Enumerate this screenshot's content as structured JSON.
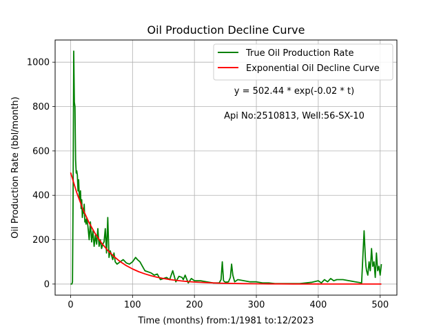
{
  "chart_data": {
    "type": "line",
    "title": "Oil Production Decline Curve",
    "xlabel": "Time (months) from:1/1981 to:12/2023",
    "ylabel": "Oil Production Rate (bbl/month)",
    "xlim": [
      -25,
      527
    ],
    "ylim": [
      -50,
      1100
    ],
    "xticks": [
      0,
      100,
      200,
      300,
      400,
      500
    ],
    "yticks": [
      0,
      200,
      400,
      600,
      800,
      1000
    ],
    "grid": true,
    "legend_position": "top-right",
    "annotations": [
      "y = 502.44 * exp(-0.02 * t)",
      "Api No:2510813, Well:56-SX-10"
    ],
    "series": [
      {
        "name": "True Oil Production Rate",
        "color": "#008000",
        "x": [
          0,
          2,
          3,
          4,
          5,
          6,
          7,
          8,
          9,
          10,
          11,
          12,
          13,
          14,
          15,
          16,
          17,
          18,
          19,
          20,
          21,
          22,
          23,
          24,
          25,
          26,
          28,
          30,
          32,
          34,
          36,
          38,
          40,
          42,
          44,
          46,
          48,
          50,
          52,
          54,
          56,
          58,
          60,
          62,
          64,
          66,
          68,
          70,
          72,
          75,
          80,
          85,
          90,
          95,
          100,
          105,
          108,
          112,
          116,
          120,
          125,
          130,
          135,
          140,
          145,
          150,
          155,
          160,
          165,
          170,
          175,
          180,
          182,
          185,
          190,
          195,
          200,
          210,
          220,
          230,
          240,
          243,
          245,
          247,
          250,
          255,
          258,
          260,
          262,
          265,
          270,
          280,
          290,
          300,
          310,
          320,
          330,
          340,
          350,
          360,
          370,
          380,
          390,
          400,
          405,
          410,
          415,
          420,
          425,
          430,
          440,
          450,
          460,
          470,
          474,
          476,
          477,
          478,
          480,
          482,
          484,
          486,
          488,
          490,
          492,
          494,
          496,
          498,
          500,
          502
        ],
        "y": [
          0,
          0,
          10,
          400,
          1050,
          820,
          800,
          560,
          500,
          510,
          490,
          420,
          470,
          400,
          380,
          420,
          340,
          380,
          300,
          330,
          320,
          360,
          280,
          290,
          270,
          300,
          260,
          200,
          280,
          190,
          240,
          170,
          220,
          180,
          250,
          170,
          200,
          160,
          180,
          190,
          250,
          140,
          300,
          120,
          150,
          130,
          110,
          140,
          100,
          90,
          100,
          110,
          95,
          90,
          100,
          120,
          110,
          100,
          80,
          60,
          55,
          50,
          40,
          45,
          20,
          25,
          30,
          20,
          60,
          10,
          35,
          30,
          20,
          40,
          5,
          25,
          15,
          15,
          10,
          5,
          5,
          20,
          100,
          15,
          8,
          10,
          30,
          90,
          40,
          10,
          20,
          15,
          10,
          10,
          5,
          5,
          2,
          2,
          2,
          2,
          2,
          5,
          8,
          15,
          5,
          20,
          10,
          25,
          15,
          20,
          20,
          15,
          10,
          5,
          240,
          120,
          80,
          60,
          40,
          100,
          60,
          160,
          80,
          100,
          30,
          140,
          60,
          80,
          40,
          90
        ]
      },
      {
        "name": "Exponential Oil Decline Curve",
        "color": "#ff0000",
        "x": [
          0,
          10,
          20,
          30,
          40,
          50,
          60,
          70,
          80,
          90,
          100,
          110,
          120,
          130,
          140,
          150,
          160,
          170,
          180,
          190,
          200,
          220,
          240,
          260,
          280,
          300,
          320,
          340,
          360,
          380,
          400,
          420,
          440,
          460,
          480,
          500,
          502
        ],
        "y": [
          502.44,
          411.4,
          336.8,
          275.7,
          225.8,
          184.8,
          151.3,
          123.9,
          101.4,
          83.1,
          68.0,
          55.7,
          45.6,
          37.3,
          30.6,
          25.0,
          20.5,
          16.8,
          13.7,
          11.3,
          9.2,
          6.2,
          4.1,
          2.8,
          1.9,
          1.2,
          0.8,
          0.6,
          0.4,
          0.3,
          0.2,
          0.1,
          0.1,
          0.1,
          0.0,
          0.0,
          0.0
        ]
      }
    ]
  }
}
